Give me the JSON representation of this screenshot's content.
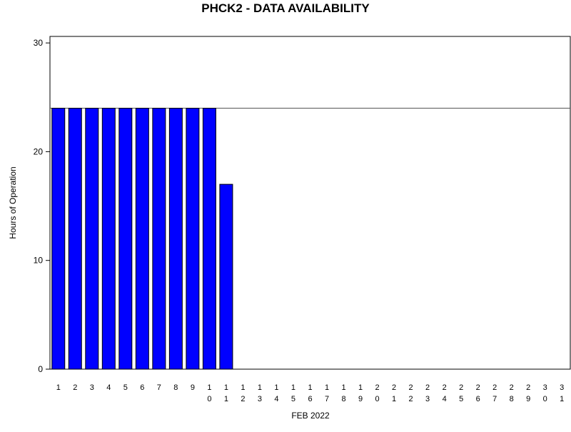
{
  "chart_data": {
    "type": "bar",
    "title": "PHCK2 - DATA AVAILABILITY",
    "x_label": "FEB 2022",
    "y_label": "Hours of Operation",
    "categories": [
      "1",
      "2",
      "3",
      "4",
      "5",
      "6",
      "7",
      "8",
      "9",
      "10",
      "11",
      "12",
      "13",
      "14",
      "15",
      "16",
      "17",
      "18",
      "19",
      "20",
      "21",
      "22",
      "23",
      "24",
      "25",
      "26",
      "27",
      "28",
      "29",
      "30",
      "31"
    ],
    "values": [
      24,
      24,
      24,
      24,
      24,
      24,
      24,
      24,
      24,
      24,
      17,
      null,
      null,
      null,
      null,
      null,
      null,
      null,
      null,
      null,
      null,
      null,
      null,
      null,
      null,
      null,
      null,
      null,
      null,
      null,
      null
    ],
    "color": "#0000ff",
    "reference_line": 24,
    "ylim": [
      0,
      30.6
    ],
    "yticks": [
      0,
      10,
      20,
      30
    ]
  }
}
